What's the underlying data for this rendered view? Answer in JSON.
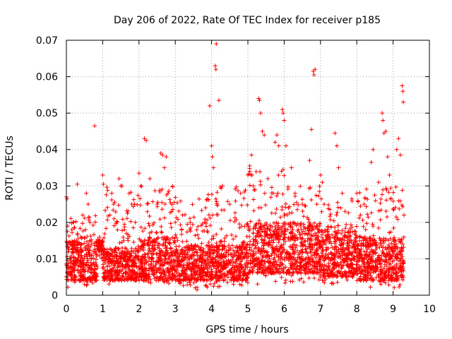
{
  "chart_data": {
    "type": "scatter",
    "title": "Day 206 of 2022, Rate Of TEC Index for receiver p185",
    "xlabel": "GPS time / hours",
    "ylabel": "ROTI / TECUs",
    "xlim": [
      0,
      10
    ],
    "ylim": [
      0,
      0.07
    ],
    "x_ticks": [
      "0",
      "1",
      "2",
      "3",
      "4",
      "5",
      "6",
      "7",
      "8",
      "9",
      "10"
    ],
    "y_ticks": [
      "0",
      "0.01",
      "0.02",
      "0.03",
      "0.04",
      "0.05",
      "0.06",
      "0.07"
    ],
    "grid": true,
    "marker": "+",
    "color": "#ff0000",
    "series": [
      {
        "name": "ROTI",
        "points": [
          [
            0.0,
            0.027
          ],
          [
            0.02,
            0.0265
          ],
          [
            0.03,
            0.008
          ],
          [
            0.05,
            0.006
          ],
          [
            0.1,
            0.01
          ],
          [
            0.15,
            0.018
          ],
          [
            0.2,
            0.02
          ],
          [
            0.25,
            0.005
          ],
          [
            0.3,
            0.0305
          ],
          [
            0.35,
            0.012
          ],
          [
            0.4,
            0.016
          ],
          [
            0.45,
            0.022
          ],
          [
            0.5,
            0.003
          ],
          [
            0.55,
            0.028
          ],
          [
            0.6,
            0.025
          ],
          [
            0.65,
            0.02
          ],
          [
            0.7,
            0.005
          ],
          [
            0.78,
            0.0465
          ],
          [
            0.8,
            0.012
          ],
          [
            1.0,
            0.033
          ],
          [
            1.02,
            0.0305
          ],
          [
            1.1,
            0.01
          ],
          [
            1.2,
            0.022
          ],
          [
            1.25,
            0.028
          ],
          [
            1.3,
            0.025
          ],
          [
            1.4,
            0.02
          ],
          [
            1.45,
            0.032
          ],
          [
            1.5,
            0.03
          ],
          [
            1.6,
            0.018
          ],
          [
            1.7,
            0.015
          ],
          [
            1.8,
            0.025
          ],
          [
            1.9,
            0.02
          ],
          [
            2.0,
            0.0335
          ],
          [
            2.05,
            0.03
          ],
          [
            2.15,
            0.043
          ],
          [
            2.2,
            0.0425
          ],
          [
            2.3,
            0.032
          ],
          [
            2.5,
            0.025
          ],
          [
            2.6,
            0.039
          ],
          [
            2.65,
            0.0385
          ],
          [
            2.7,
            0.035
          ],
          [
            2.75,
            0.038
          ],
          [
            2.8,
            0.028
          ],
          [
            2.9,
            0.023
          ],
          [
            3.0,
            0.02
          ],
          [
            3.2,
            0.022
          ],
          [
            3.4,
            0.018
          ],
          [
            3.55,
            0.002
          ],
          [
            3.6,
            0.0015
          ],
          [
            3.8,
            0.02
          ],
          [
            3.95,
            0.052
          ],
          [
            4.0,
            0.041
          ],
          [
            4.02,
            0.038
          ],
          [
            4.05,
            0.035
          ],
          [
            4.1,
            0.063
          ],
          [
            4.12,
            0.062
          ],
          [
            4.13,
            0.069
          ],
          [
            4.2,
            0.0535
          ],
          [
            4.3,
            0.03
          ],
          [
            4.5,
            0.025
          ],
          [
            4.6,
            0.003
          ],
          [
            4.8,
            0.028
          ],
          [
            5.0,
            0.033
          ],
          [
            5.05,
            0.0355
          ],
          [
            5.1,
            0.0385
          ],
          [
            5.15,
            0.03
          ],
          [
            5.3,
            0.054
          ],
          [
            5.32,
            0.0535
          ],
          [
            5.35,
            0.05
          ],
          [
            5.4,
            0.045
          ],
          [
            5.45,
            0.044
          ],
          [
            5.55,
            0.032
          ],
          [
            5.7,
            0.028
          ],
          [
            5.75,
            0.042
          ],
          [
            5.8,
            0.044
          ],
          [
            5.85,
            0.041
          ],
          [
            5.95,
            0.051
          ],
          [
            5.97,
            0.05
          ],
          [
            6.0,
            0.048
          ],
          [
            6.05,
            0.041
          ],
          [
            6.2,
            0.035
          ],
          [
            6.3,
            0.028
          ],
          [
            6.5,
            0.025
          ],
          [
            6.7,
            0.037
          ],
          [
            6.75,
            0.0455
          ],
          [
            6.8,
            0.0615
          ],
          [
            6.82,
            0.0605
          ],
          [
            6.85,
            0.062
          ],
          [
            6.9,
            0.025
          ],
          [
            7.0,
            0.033
          ],
          [
            7.05,
            0.031
          ],
          [
            7.1,
            0.025
          ],
          [
            7.4,
            0.0445
          ],
          [
            7.45,
            0.041
          ],
          [
            7.5,
            0.035
          ],
          [
            7.6,
            0.028
          ],
          [
            8.0,
            0.028
          ],
          [
            8.1,
            0.022
          ],
          [
            8.2,
            0.025
          ],
          [
            8.4,
            0.0365
          ],
          [
            8.45,
            0.04
          ],
          [
            8.6,
            0.031
          ],
          [
            8.7,
            0.05
          ],
          [
            8.72,
            0.048
          ],
          [
            8.75,
            0.0445
          ],
          [
            8.8,
            0.045
          ],
          [
            8.85,
            0.038
          ],
          [
            8.9,
            0.033
          ],
          [
            9.1,
            0.04
          ],
          [
            9.15,
            0.043
          ],
          [
            9.2,
            0.0385
          ],
          [
            9.25,
            0.0575
          ],
          [
            9.27,
            0.056
          ],
          [
            9.28,
            0.053
          ],
          [
            9.3,
            0.022
          ]
        ]
      }
    ],
    "dense_bands": [
      {
        "x_start": 0.0,
        "x_end": 0.85,
        "low": 0.002,
        "typ_lo": 0.004,
        "typ_hi": 0.015,
        "high": 0.022
      },
      {
        "x_start": 0.85,
        "x_end": 1.0,
        "low": 0.01,
        "typ_lo": 0.012,
        "typ_hi": 0.015,
        "high": 0.016
      },
      {
        "x_start": 1.0,
        "x_end": 2.0,
        "low": 0.003,
        "typ_lo": 0.004,
        "typ_hi": 0.013,
        "high": 0.03
      },
      {
        "x_start": 2.0,
        "x_end": 3.0,
        "low": 0.003,
        "typ_lo": 0.004,
        "typ_hi": 0.016,
        "high": 0.03
      },
      {
        "x_start": 3.0,
        "x_end": 4.0,
        "low": 0.002,
        "typ_lo": 0.004,
        "typ_hi": 0.014,
        "high": 0.028
      },
      {
        "x_start": 4.0,
        "x_end": 5.0,
        "low": 0.002,
        "typ_lo": 0.004,
        "typ_hi": 0.014,
        "high": 0.03
      },
      {
        "x_start": 5.0,
        "x_end": 6.0,
        "low": 0.003,
        "typ_lo": 0.006,
        "typ_hi": 0.02,
        "high": 0.035
      },
      {
        "x_start": 6.0,
        "x_end": 7.0,
        "low": 0.003,
        "typ_lo": 0.006,
        "typ_hi": 0.02,
        "high": 0.03
      },
      {
        "x_start": 7.0,
        "x_end": 8.0,
        "low": 0.003,
        "typ_lo": 0.005,
        "typ_hi": 0.018,
        "high": 0.027
      },
      {
        "x_start": 8.0,
        "x_end": 9.3,
        "low": 0.002,
        "typ_lo": 0.004,
        "typ_hi": 0.016,
        "high": 0.03
      }
    ]
  }
}
